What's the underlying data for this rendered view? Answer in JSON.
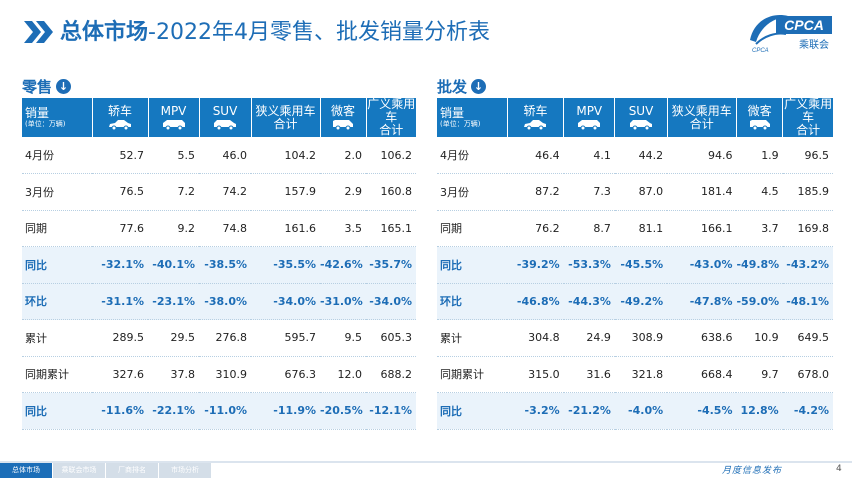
{
  "header": {
    "title_bold": "总体市场",
    "title_rest": "-2022年4月零售、批发销量分析表",
    "logo_text": "CPCA",
    "logo_sub": "乘联会",
    "logo_small": "CPCA"
  },
  "colors": {
    "accent": "#1d6db6",
    "header_bg": "#1578c0",
    "pct_row_bg": "#eaf3fb"
  },
  "columns": [
    {
      "label": "轿车",
      "icon": "sedan-icon"
    },
    {
      "label": "MPV",
      "icon": "mpv-icon"
    },
    {
      "label": "SUV",
      "icon": "suv-icon"
    },
    {
      "label": "狭义乘用车\n合计",
      "icon": ""
    },
    {
      "label": "微客",
      "icon": "minivan-icon"
    },
    {
      "label": "广义乘用车\n合计",
      "icon": ""
    }
  ],
  "first_col": {
    "label": "销量",
    "sub": "(单位：万辆)"
  },
  "retail": {
    "title": "零售",
    "rows": [
      {
        "label": "4月份",
        "values": [
          "52.7",
          "5.5",
          "46.0",
          "104.2",
          "2.0",
          "106.2"
        ],
        "pct": false
      },
      {
        "label": "3月份",
        "values": [
          "76.5",
          "7.2",
          "74.2",
          "157.9",
          "2.9",
          "160.8"
        ],
        "pct": false
      },
      {
        "label": "同期",
        "values": [
          "77.6",
          "9.2",
          "74.8",
          "161.6",
          "3.5",
          "165.1"
        ],
        "pct": false
      },
      {
        "label": "同比",
        "values": [
          "-32.1%",
          "-40.1%",
          "-38.5%",
          "-35.5%",
          "-42.6%",
          "-35.7%"
        ],
        "pct": true
      },
      {
        "label": "环比",
        "values": [
          "-31.1%",
          "-23.1%",
          "-38.0%",
          "-34.0%",
          "-31.0%",
          "-34.0%"
        ],
        "pct": true
      },
      {
        "label": "累计",
        "values": [
          "289.5",
          "29.5",
          "276.8",
          "595.7",
          "9.5",
          "605.3"
        ],
        "pct": false
      },
      {
        "label": "同期累计",
        "values": [
          "327.6",
          "37.8",
          "310.9",
          "676.3",
          "12.0",
          "688.2"
        ],
        "pct": false
      },
      {
        "label": "同比",
        "values": [
          "-11.6%",
          "-22.1%",
          "-11.0%",
          "-11.9%",
          "-20.5%",
          "-12.1%"
        ],
        "pct": true
      }
    ]
  },
  "wholesale": {
    "title": "批发",
    "rows": [
      {
        "label": "4月份",
        "values": [
          "46.4",
          "4.1",
          "44.2",
          "94.6",
          "1.9",
          "96.5"
        ],
        "pct": false
      },
      {
        "label": "3月份",
        "values": [
          "87.2",
          "7.3",
          "87.0",
          "181.4",
          "4.5",
          "185.9"
        ],
        "pct": false
      },
      {
        "label": "同期",
        "values": [
          "76.2",
          "8.7",
          "81.1",
          "166.1",
          "3.7",
          "169.8"
        ],
        "pct": false
      },
      {
        "label": "同比",
        "values": [
          "-39.2%",
          "-53.3%",
          "-45.5%",
          "-43.0%",
          "-49.8%",
          "-43.2%"
        ],
        "pct": true
      },
      {
        "label": "环比",
        "values": [
          "-46.8%",
          "-44.3%",
          "-49.2%",
          "-47.8%",
          "-59.0%",
          "-48.1%"
        ],
        "pct": true
      },
      {
        "label": "累计",
        "values": [
          "304.8",
          "24.9",
          "308.9",
          "638.6",
          "10.9",
          "649.5"
        ],
        "pct": false
      },
      {
        "label": "同期累计",
        "values": [
          "315.0",
          "31.6",
          "321.8",
          "668.4",
          "9.7",
          "678.0"
        ],
        "pct": false
      },
      {
        "label": "同比",
        "values": [
          "-3.2%",
          "-21.2%",
          "-4.0%",
          "-4.5%",
          "12.8%",
          "-4.2%"
        ],
        "pct": true
      }
    ]
  },
  "footer": {
    "tabs": [
      "总体市场",
      "乘联会市场",
      "厂商排名",
      "市场分析"
    ],
    "tagline": "月度信息发布",
    "page": "4"
  }
}
